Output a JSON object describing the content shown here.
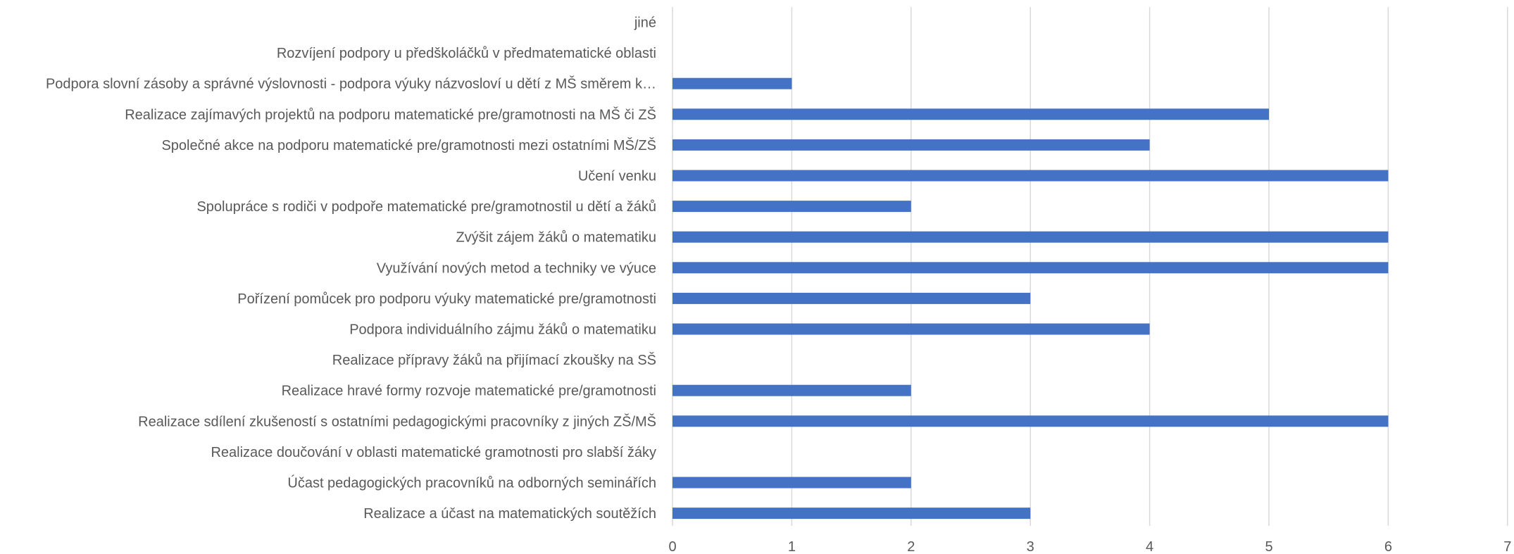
{
  "chart_data": {
    "type": "bar",
    "orientation": "horizontal",
    "categories": [
      "jiné",
      "Rozvíjení podpory u předškoláčků v předmatematické oblasti",
      "Podpora slovní zásoby a správné výslovnosti - podpora výuky názvosloví u dětí z  MŠ směrem k…",
      "Realizace zajímavých projektů na podporu matematické pre/gramotnosti na MŠ či ZŠ",
      "Společné akce na podporu matematické pre/gramotnosti mezi ostatními MŠ/ZŠ",
      "Učení venku",
      "Spolupráce s rodiči v podpoře matematické pre/gramotnostil  u dětí a žáků",
      "Zvýšit zájem  žáků o matematiku",
      "Využívání nových metod a techniky ve výuce",
      "Pořízení pomůcek pro podporu výuky matematické pre/gramotnosti",
      "Podpora individuálního zájmu žáků o matematiku",
      "Realizace přípravy žáků na přijímací zkoušky na SŠ",
      "Realizace hravé formy rozvoje matematické pre/gramotnosti",
      "Realizace sdílení zkušeností s ostatními pedagogickými pracovníky z jiných  ZŠ/MŠ",
      "Realizace doučování v oblasti matematické gramotnosti pro slabší žáky",
      "Účast pedagogických pracovníků na odborných seminářích",
      "Realizace a účast na matematických soutěžích"
    ],
    "values": [
      0,
      0,
      1,
      5,
      4,
      6,
      2,
      6,
      6,
      3,
      4,
      0,
      2,
      6,
      0,
      2,
      3
    ],
    "xlim": [
      0,
      7
    ],
    "xticks": [
      "0",
      "1",
      "2",
      "3",
      "4",
      "5",
      "6",
      "7"
    ],
    "grid": "vertical",
    "bar_color": "#4472c4",
    "gridline_color": "#d9d9d9",
    "label_color": "#595959",
    "title": "",
    "xlabel": "",
    "ylabel": ""
  }
}
